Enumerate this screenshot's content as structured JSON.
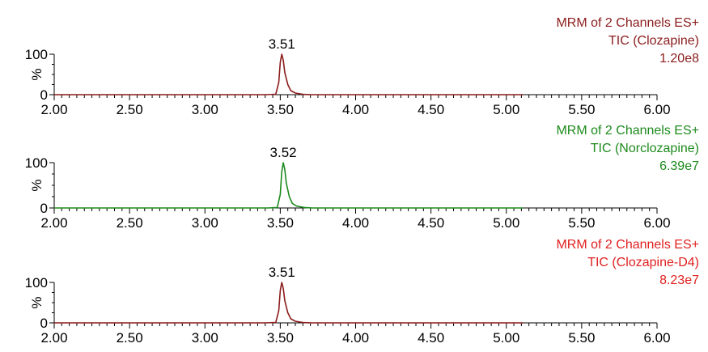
{
  "chart_data": [
    {
      "type": "line",
      "legend": {
        "line1": "MRM of 2 Channels ES+",
        "line2": "TIC (Clozapine)",
        "line3": "1.20e8"
      },
      "color": "#8b1c1c",
      "ylabel": "%",
      "xlim": [
        2.0,
        6.0
      ],
      "ylim": [
        0,
        100
      ],
      "x_tick_labels": [
        "2.00",
        "2.50",
        "3.00",
        "3.50",
        "4.00",
        "4.50",
        "5.00",
        "5.50",
        "6.00"
      ],
      "y_tick_labels": [
        "0",
        "100"
      ],
      "peak_label": "3.51",
      "trace_end": 5.11,
      "series": [
        {
          "x": [
            2.0,
            3.4,
            3.47,
            3.49,
            3.5,
            3.51,
            3.52,
            3.53,
            3.55,
            3.57,
            3.6,
            3.65,
            3.7,
            5.11
          ],
          "y": [
            0,
            0,
            1,
            30,
            80,
            100,
            85,
            55,
            25,
            10,
            4,
            1,
            0,
            0
          ]
        }
      ]
    },
    {
      "type": "line",
      "legend": {
        "line1": "MRM of 2 Channels ES+",
        "line2": "TIC (Norclozapine)",
        "line3": "6.39e7"
      },
      "color": "#1d8a1d",
      "ylabel": "%",
      "xlim": [
        2.0,
        6.0
      ],
      "ylim": [
        0,
        100
      ],
      "x_tick_labels": [
        "2.00",
        "2.50",
        "3.00",
        "3.50",
        "4.00",
        "4.50",
        "5.00",
        "5.50",
        "6.00"
      ],
      "y_tick_labels": [
        "0",
        "100"
      ],
      "peak_label": "3.52",
      "trace_end": 5.11,
      "series": [
        {
          "x": [
            2.0,
            3.42,
            3.48,
            3.5,
            3.51,
            3.52,
            3.53,
            3.54,
            3.56,
            3.58,
            3.61,
            3.66,
            3.71,
            5.11
          ],
          "y": [
            0,
            0,
            1,
            30,
            80,
            100,
            85,
            55,
            25,
            10,
            4,
            1,
            0,
            0
          ]
        }
      ]
    },
    {
      "type": "line",
      "legend": {
        "line1": "MRM of 2 Channels ES+",
        "line2": "TIC (Clozapine-D4)",
        "line3": "8.23e7"
      },
      "color": "#e02020",
      "trace_color": "#8b1c1c",
      "ylabel": "%",
      "xlim": [
        2.0,
        6.0
      ],
      "ylim": [
        0,
        100
      ],
      "x_tick_labels": [
        "2.00",
        "2.50",
        "3.00",
        "3.50",
        "4.00",
        "4.50",
        "5.00",
        "5.50",
        "6.00"
      ],
      "y_tick_labels": [
        "0",
        "100"
      ],
      "peak_label": "3.51",
      "trace_end": 5.11,
      "series": [
        {
          "x": [
            2.0,
            3.4,
            3.47,
            3.49,
            3.5,
            3.51,
            3.52,
            3.53,
            3.55,
            3.57,
            3.6,
            3.65,
            3.7,
            5.11
          ],
          "y": [
            0,
            0,
            1,
            30,
            80,
            100,
            85,
            55,
            25,
            10,
            4,
            1,
            0,
            0
          ]
        }
      ]
    }
  ]
}
